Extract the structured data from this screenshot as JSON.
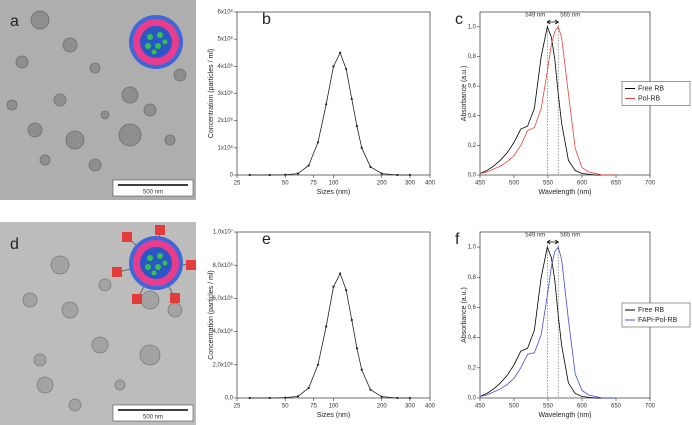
{
  "images": [
    {
      "label": "a",
      "scale_bar": "500 nm"
    },
    {
      "label": "d",
      "scale_bar": "500 nm"
    }
  ],
  "chart_data": [
    {
      "type": "line",
      "panel_label": "b",
      "xlabel": "Sizes (nm)",
      "ylabel": "Concentration (particles / ml)",
      "xscale": "log",
      "markers": true,
      "xlim": [
        25,
        400
      ],
      "xticks": [
        25,
        50,
        75,
        100,
        200,
        300,
        400
      ],
      "ylim": [
        0,
        6000000
      ],
      "yticks": [
        0,
        {
          "value": 1000000,
          "label": "1x10⁶"
        },
        {
          "value": 2000000,
          "label": "2x10⁶"
        },
        {
          "value": 3000000,
          "label": "3x10⁶"
        },
        {
          "value": 4000000,
          "label": "4x10⁶"
        },
        {
          "value": 5000000,
          "label": "5x10⁶"
        },
        {
          "value": 6000000,
          "label": "6x10⁶"
        }
      ],
      "x": [
        30,
        40,
        50,
        60,
        70,
        80,
        90,
        100,
        110,
        120,
        130,
        140,
        150,
        170,
        200,
        250,
        300
      ],
      "series": [
        {
          "color": "#222222",
          "values": [
            0,
            0,
            10000,
            50000,
            350000,
            1200000,
            2600000,
            4000000,
            4500000,
            3900000,
            2800000,
            1800000,
            1000000,
            300000,
            50000,
            0,
            0
          ]
        }
      ]
    },
    {
      "type": "line",
      "panel_label": "c",
      "xlabel": "Wavelength (nm)",
      "ylabel": "Absorbance (a.u.)",
      "legend": "right",
      "xlim": [
        450,
        700
      ],
      "xticks": [
        450,
        500,
        550,
        600,
        650,
        700
      ],
      "ylim": [
        0,
        1.1
      ],
      "yticks": [
        {
          "value": 0,
          "label": "0,0"
        },
        {
          "value": 0.2,
          "label": "0,2"
        },
        {
          "value": 0.4,
          "label": "0,4"
        },
        {
          "value": 0.6,
          "label": "0,6"
        },
        {
          "value": 0.8,
          "label": "0,8"
        },
        {
          "value": 1,
          "label": "1,0"
        }
      ],
      "annotations": [
        {
          "text": "549 nm",
          "x": 549
        },
        {
          "text": "565 nm",
          "x": 565
        }
      ],
      "x": [
        450,
        460,
        470,
        480,
        490,
        500,
        510,
        520,
        530,
        540,
        549,
        555,
        560,
        565,
        570,
        580,
        590,
        600,
        610,
        620,
        630,
        640,
        650
      ],
      "series": [
        {
          "name": "Free RB",
          "color": "#000000",
          "values": [
            0.01,
            0.03,
            0.06,
            0.1,
            0.15,
            0.22,
            0.31,
            0.33,
            0.45,
            0.8,
            1.0,
            0.93,
            0.78,
            0.55,
            0.35,
            0.1,
            0.03,
            0.01,
            0.005,
            0,
            0,
            0,
            0
          ]
        },
        {
          "name": "Pol-RB",
          "color": "#e8413c",
          "values": [
            0.01,
            0.02,
            0.04,
            0.06,
            0.09,
            0.13,
            0.2,
            0.3,
            0.32,
            0.45,
            0.7,
            0.88,
            0.97,
            1.0,
            0.93,
            0.55,
            0.18,
            0.05,
            0.02,
            0.01,
            0,
            0,
            0
          ]
        }
      ]
    },
    {
      "type": "line",
      "panel_label": "e",
      "xlabel": "Sizes (nm)",
      "ylabel": "Concentration (particles / ml)",
      "xscale": "log",
      "markers": true,
      "xlim": [
        25,
        400
      ],
      "xticks": [
        25,
        50,
        75,
        100,
        200,
        300,
        400
      ],
      "ylim": [
        0,
        10000000
      ],
      "yticks": [
        {
          "value": 0,
          "label": "0,0"
        },
        {
          "value": 2000000,
          "label": "2,0x10⁶"
        },
        {
          "value": 4000000,
          "label": "4,0x10⁶"
        },
        {
          "value": 6000000,
          "label": "6,0x10⁶"
        },
        {
          "value": 8000000,
          "label": "8,0x10⁶"
        },
        {
          "value": 10000000,
          "label": "1,0x10⁷"
        }
      ],
      "x": [
        30,
        40,
        50,
        60,
        70,
        80,
        90,
        100,
        110,
        120,
        130,
        140,
        150,
        170,
        200,
        250,
        300
      ],
      "series": [
        {
          "color": "#222222",
          "values": [
            0,
            0,
            20000,
            100000,
            600000,
            2000000,
            4300000,
            6700000,
            7500000,
            6500000,
            4700000,
            3000000,
            1700000,
            500000,
            80000,
            0,
            0
          ]
        }
      ]
    },
    {
      "type": "line",
      "panel_label": "f",
      "xlabel": "Wavelength (nm)",
      "ylabel": "Absorbance (a.u.)",
      "legend": "right",
      "xlim": [
        450,
        700
      ],
      "xticks": [
        450,
        500,
        550,
        600,
        650,
        700
      ],
      "ylim": [
        0,
        1.1
      ],
      "yticks": [
        {
          "value": 0,
          "label": "0,0"
        },
        {
          "value": 0.2,
          "label": "0,2"
        },
        {
          "value": 0.4,
          "label": "0,4"
        },
        {
          "value": 0.6,
          "label": "0,6"
        },
        {
          "value": 0.8,
          "label": "0,8"
        },
        {
          "value": 1,
          "label": "1,0"
        }
      ],
      "annotations": [
        {
          "text": "549 nm",
          "x": 549
        },
        {
          "text": "565 nm",
          "x": 565
        }
      ],
      "x": [
        450,
        460,
        470,
        480,
        490,
        500,
        510,
        520,
        530,
        540,
        549,
        555,
        560,
        565,
        570,
        580,
        590,
        600,
        610,
        620,
        630,
        640,
        650
      ],
      "series": [
        {
          "name": "Free RB",
          "color": "#000000",
          "values": [
            0.01,
            0.03,
            0.06,
            0.1,
            0.15,
            0.22,
            0.31,
            0.33,
            0.45,
            0.8,
            1.0,
            0.93,
            0.78,
            0.55,
            0.35,
            0.1,
            0.03,
            0.01,
            0.005,
            0,
            0,
            0,
            0
          ]
        },
        {
          "name": "FAPi-Pol-RB",
          "color": "#3d4fd6",
          "values": [
            0.01,
            0.02,
            0.04,
            0.06,
            0.09,
            0.13,
            0.2,
            0.29,
            0.3,
            0.42,
            0.68,
            0.87,
            0.97,
            1.0,
            0.92,
            0.52,
            0.16,
            0.05,
            0.02,
            0.01,
            0,
            0,
            0
          ]
        }
      ]
    }
  ]
}
